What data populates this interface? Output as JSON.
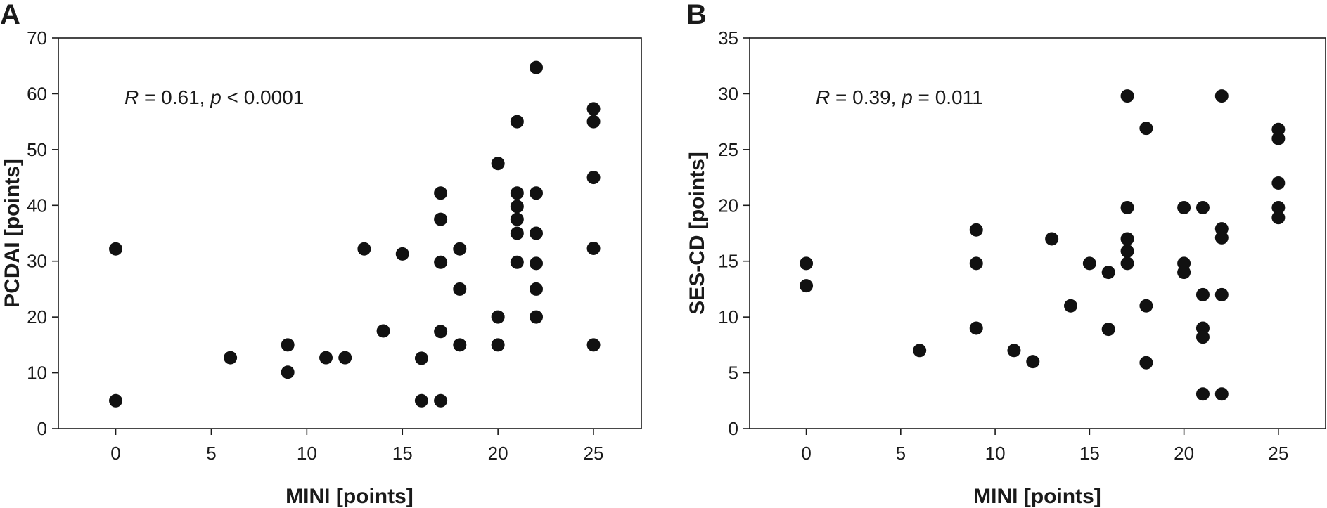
{
  "chart_data": [
    {
      "type": "scatter",
      "panel_label": "A",
      "xlabel": "MINI [points]",
      "ylabel": "PCDAI [points]",
      "annotation": {
        "r_symbol": "R",
        "r_text": " = 0.61, ",
        "p_symbol": "p",
        "p_text": " < 0.0001"
      },
      "xlim": [
        -3,
        27.5
      ],
      "ylim": [
        0,
        70
      ],
      "xticks": [
        0,
        5,
        10,
        15,
        20,
        25
      ],
      "yticks": [
        0,
        10,
        20,
        30,
        40,
        50,
        60,
        70
      ],
      "grid": false,
      "points": [
        {
          "x": 0,
          "y": 32.2
        },
        {
          "x": 0,
          "y": 5
        },
        {
          "x": 6,
          "y": 12.7
        },
        {
          "x": 9,
          "y": 15
        },
        {
          "x": 9,
          "y": 10.1
        },
        {
          "x": 11,
          "y": 12.7
        },
        {
          "x": 12,
          "y": 12.7
        },
        {
          "x": 13,
          "y": 32.2
        },
        {
          "x": 14,
          "y": 17.5
        },
        {
          "x": 15,
          "y": 31.3
        },
        {
          "x": 16,
          "y": 12.6
        },
        {
          "x": 16,
          "y": 5
        },
        {
          "x": 17,
          "y": 42.2
        },
        {
          "x": 17,
          "y": 37.5
        },
        {
          "x": 17,
          "y": 29.8
        },
        {
          "x": 17,
          "y": 17.4
        },
        {
          "x": 17,
          "y": 5
        },
        {
          "x": 18,
          "y": 32.2
        },
        {
          "x": 18,
          "y": 25
        },
        {
          "x": 18,
          "y": 15
        },
        {
          "x": 20,
          "y": 47.5
        },
        {
          "x": 20,
          "y": 20
        },
        {
          "x": 20,
          "y": 15
        },
        {
          "x": 21,
          "y": 55
        },
        {
          "x": 21,
          "y": 42.2
        },
        {
          "x": 21,
          "y": 39.8
        },
        {
          "x": 21,
          "y": 37.5
        },
        {
          "x": 21,
          "y": 35
        },
        {
          "x": 21,
          "y": 29.8
        },
        {
          "x": 22,
          "y": 64.7
        },
        {
          "x": 22,
          "y": 42.2
        },
        {
          "x": 22,
          "y": 35
        },
        {
          "x": 22,
          "y": 29.6
        },
        {
          "x": 22,
          "y": 25
        },
        {
          "x": 22,
          "y": 20
        },
        {
          "x": 25,
          "y": 57.3
        },
        {
          "x": 25,
          "y": 55
        },
        {
          "x": 25,
          "y": 45
        },
        {
          "x": 25,
          "y": 32.3
        },
        {
          "x": 25,
          "y": 15
        }
      ]
    },
    {
      "type": "scatter",
      "panel_label": "B",
      "xlabel": "MINI [points]",
      "ylabel": "SES-CD [points]",
      "annotation": {
        "r_symbol": "R",
        "r_text": " = 0.39, ",
        "p_symbol": "p",
        "p_text": " = 0.011"
      },
      "xlim": [
        -3,
        27.5
      ],
      "ylim": [
        0,
        35
      ],
      "xticks": [
        0,
        5,
        10,
        15,
        20,
        25
      ],
      "yticks": [
        0,
        5,
        10,
        15,
        20,
        25,
        30,
        35
      ],
      "grid": false,
      "points": [
        {
          "x": 0,
          "y": 14.8
        },
        {
          "x": 0,
          "y": 12.8
        },
        {
          "x": 6,
          "y": 7
        },
        {
          "x": 9,
          "y": 17.8
        },
        {
          "x": 9,
          "y": 14.8
        },
        {
          "x": 9,
          "y": 9
        },
        {
          "x": 11,
          "y": 7
        },
        {
          "x": 12,
          "y": 6
        },
        {
          "x": 13,
          "y": 17
        },
        {
          "x": 14,
          "y": 11
        },
        {
          "x": 15,
          "y": 14.8
        },
        {
          "x": 16,
          "y": 14
        },
        {
          "x": 16,
          "y": 8.9
        },
        {
          "x": 17,
          "y": 29.8
        },
        {
          "x": 17,
          "y": 19.8
        },
        {
          "x": 17,
          "y": 17
        },
        {
          "x": 17,
          "y": 15.9
        },
        {
          "x": 17,
          "y": 14.8
        },
        {
          "x": 18,
          "y": 26.9
        },
        {
          "x": 18,
          "y": 11
        },
        {
          "x": 18,
          "y": 5.9
        },
        {
          "x": 20,
          "y": 19.8
        },
        {
          "x": 20,
          "y": 14.8
        },
        {
          "x": 20,
          "y": 14
        },
        {
          "x": 21,
          "y": 19.8
        },
        {
          "x": 21,
          "y": 12
        },
        {
          "x": 21,
          "y": 9
        },
        {
          "x": 21,
          "y": 8.2
        },
        {
          "x": 21,
          "y": 3.1
        },
        {
          "x": 22,
          "y": 29.8
        },
        {
          "x": 22,
          "y": 17.9
        },
        {
          "x": 22,
          "y": 17.1
        },
        {
          "x": 22,
          "y": 12
        },
        {
          "x": 22,
          "y": 3.1
        },
        {
          "x": 25,
          "y": 26.8
        },
        {
          "x": 25,
          "y": 26
        },
        {
          "x": 25,
          "y": 22
        },
        {
          "x": 25,
          "y": 19.8
        },
        {
          "x": 25,
          "y": 18.9
        }
      ]
    }
  ]
}
